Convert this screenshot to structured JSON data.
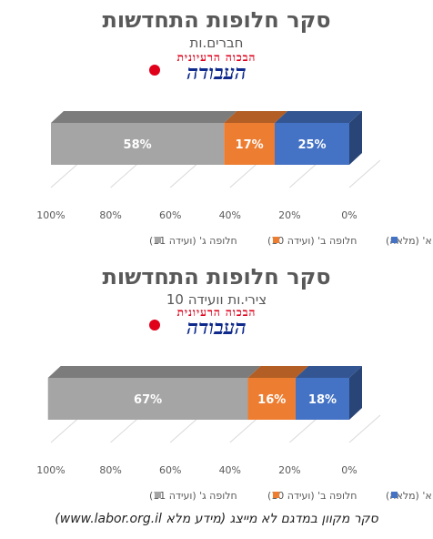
{
  "charts": [
    {
      "title": "סקר חלופות התחדשות",
      "subtitle": "חברים.ות",
      "logo": {
        "top": "הבכוה הרעיונית",
        "main": "העבודה"
      }
    },
    {
      "title": "סקר חלופות התחדשות",
      "subtitle": "צירי.ות וועידה 10",
      "logo": {
        "top": "הבכוה הרעיונית",
        "main": "העבודה"
      }
    }
  ],
  "chart_data": [
    {
      "type": "bar",
      "orientation": "horizontal-stacked-100",
      "title": "סקר חלופות התחדשות",
      "subtitle": "חברים.ות",
      "series": [
        {
          "name": "חלופה א' (מלאה)",
          "value": 25,
          "label": "25%",
          "color": "#4472c4"
        },
        {
          "name": "חלופה ב' (ועידה 10)",
          "value": 17,
          "label": "17%",
          "color": "#ed7d31"
        },
        {
          "name": "חלופה ג' (ועידה 11)",
          "value": 58,
          "label": "58%",
          "color": "#a5a5a5"
        }
      ],
      "x_axis": {
        "reversed": true,
        "range": [
          0,
          100
        ],
        "ticks": [
          "0%",
          "20%",
          "40%",
          "60%",
          "80%",
          "100%"
        ]
      },
      "legend": "bottom"
    },
    {
      "type": "bar",
      "orientation": "horizontal-stacked-100",
      "title": "סקר חלופות התחדשות",
      "subtitle": "צירי.ות וועידה 10",
      "series": [
        {
          "name": "חלופה א' (מלאה)",
          "value": 18,
          "label": "18%",
          "color": "#4472c4"
        },
        {
          "name": "חלופה ב' (ועידה 10)",
          "value": 16,
          "label": "16%",
          "color": "#ed7d31"
        },
        {
          "name": "חלופה ג' (ועידה 11)",
          "value": 67,
          "label": "67%",
          "color": "#a5a5a5"
        }
      ],
      "x_axis": {
        "reversed": true,
        "range": [
          0,
          100
        ],
        "ticks": [
          "0%",
          "20%",
          "40%",
          "60%",
          "80%",
          "100%"
        ]
      },
      "legend": "bottom"
    }
  ],
  "footer": "סקר מקוון במדגם לא מייצג (מידע מלא www.labor.org.il)"
}
